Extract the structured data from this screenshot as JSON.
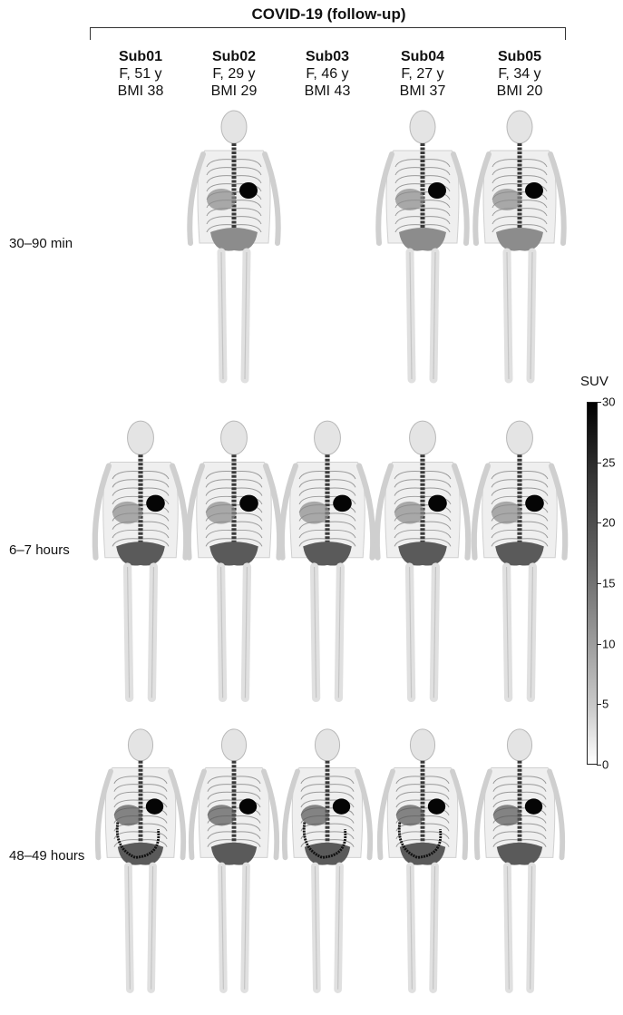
{
  "figure": {
    "group_title": "COVID-19 (follow-up)",
    "subjects": [
      {
        "id": "Sub01",
        "sex_age": "F, 51 y",
        "bmi": "BMI 38"
      },
      {
        "id": "Sub02",
        "sex_age": "F, 29 y",
        "bmi": "BMI 29"
      },
      {
        "id": "Sub03",
        "sex_age": "F, 46 y",
        "bmi": "BMI 43"
      },
      {
        "id": "Sub04",
        "sex_age": "F, 27 y",
        "bmi": "BMI 37"
      },
      {
        "id": "Sub05",
        "sex_age": "F, 34 y",
        "bmi": "BMI 20"
      }
    ],
    "timepoints": [
      "30–90 min",
      "6–7 hours",
      "48–49 hours"
    ],
    "availability": [
      [
        false,
        true,
        false,
        true,
        true
      ],
      [
        true,
        true,
        true,
        true,
        true
      ],
      [
        true,
        true,
        true,
        true,
        true
      ]
    ],
    "colorbar": {
      "label": "SUV",
      "min": 0,
      "max": 30,
      "ticks": [
        "30",
        "25",
        "20",
        "15",
        "10",
        "5",
        "0"
      ],
      "colormap": "inverted-gray"
    }
  }
}
